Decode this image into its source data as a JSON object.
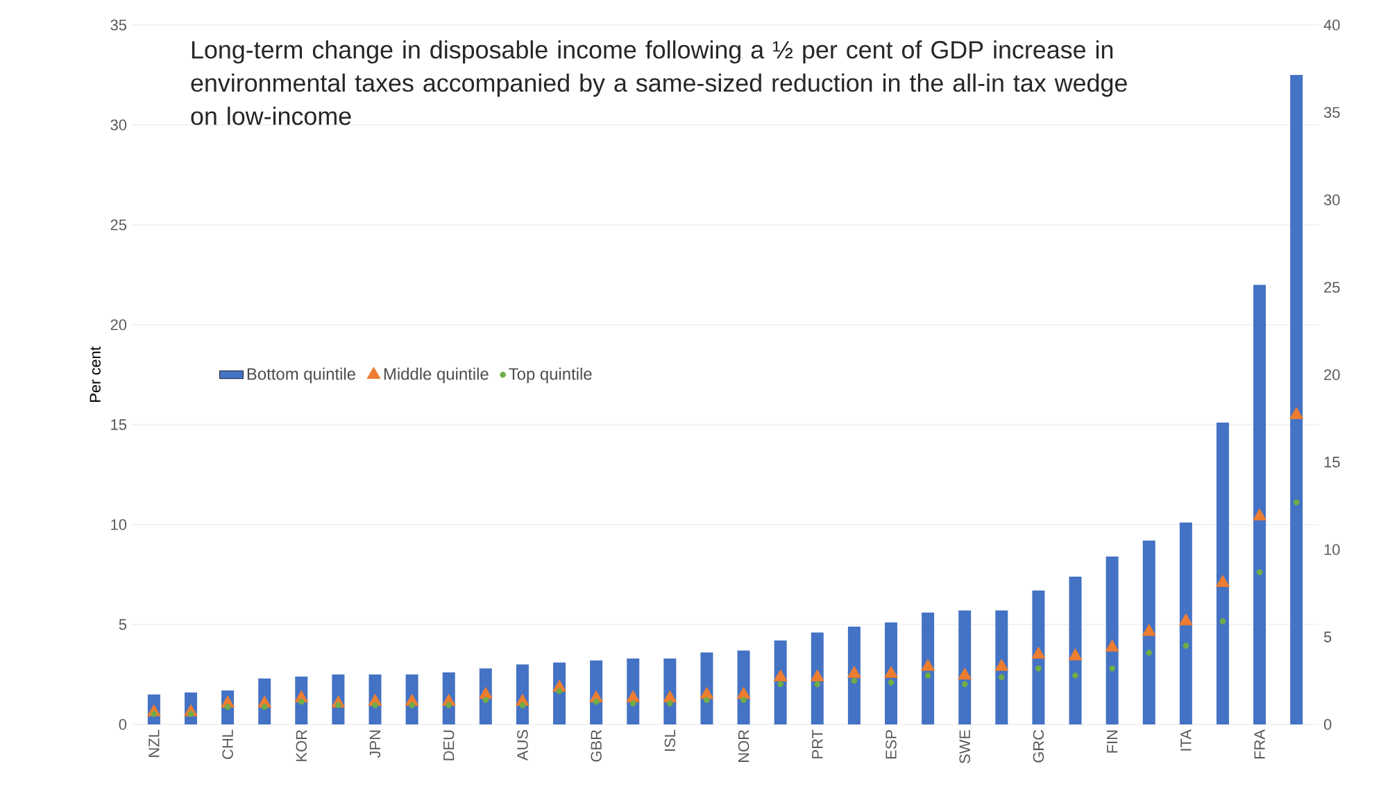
{
  "chart_data": {
    "type": "bar",
    "title": "Long-term change in disposable income following a ½ per cent of GDP increase in environmental taxes accompanied by a same-sized reduction in the all-in tax wedge on low-income",
    "ylabel": "Per cent",
    "categories": [
      "NZL",
      null,
      "CHL",
      null,
      "KOR",
      null,
      "JPN",
      null,
      "DEU",
      null,
      "AUS",
      null,
      "GBR",
      null,
      "ISL",
      null,
      "NOR",
      null,
      "PRT",
      null,
      "ESP",
      null,
      "SWE",
      null,
      "GRC",
      null,
      "FIN",
      null,
      "ITA",
      null,
      "FRA",
      null
    ],
    "series": [
      {
        "name": "Bottom quintile",
        "type": "bar",
        "color": "#4472c4",
        "values": [
          1.5,
          1.6,
          1.7,
          2.3,
          2.4,
          2.5,
          2.5,
          2.5,
          2.6,
          2.8,
          3.0,
          3.1,
          3.2,
          3.3,
          3.3,
          3.6,
          3.7,
          4.2,
          4.6,
          4.9,
          5.1,
          5.6,
          5.7,
          5.7,
          6.7,
          7.4,
          8.4,
          9.2,
          10.1,
          15.1,
          22.0,
          32.5
        ]
      },
      {
        "name": "Middle quintile",
        "type": "scatter",
        "axis": "y2",
        "marker": "triangle",
        "color": "#ed7d31",
        "values": [
          0.7,
          0.7,
          1.2,
          1.2,
          1.5,
          1.2,
          1.3,
          1.3,
          1.3,
          1.7,
          1.3,
          2.1,
          1.5,
          1.5,
          1.5,
          1.7,
          1.7,
          2.7,
          2.7,
          2.9,
          2.9,
          3.3,
          2.8,
          3.3,
          4.0,
          3.9,
          4.4,
          5.3,
          5.9,
          8.1,
          11.9,
          17.7
        ]
      },
      {
        "name": "Top quintile",
        "type": "scatter",
        "axis": "y2",
        "marker": "circle",
        "color": "#70ad47",
        "values": [
          0.6,
          0.6,
          1.0,
          1.0,
          1.3,
          1.1,
          1.1,
          1.1,
          1.1,
          1.4,
          1.1,
          1.9,
          1.3,
          1.2,
          1.2,
          1.4,
          1.4,
          2.3,
          2.3,
          2.5,
          2.4,
          2.8,
          2.3,
          2.7,
          3.2,
          2.8,
          3.2,
          4.1,
          4.5,
          5.9,
          8.7,
          12.7
        ]
      }
    ],
    "ylim": [
      0,
      35
    ],
    "yticks": [
      0,
      5,
      10,
      15,
      20,
      25,
      30,
      35
    ],
    "y2lim": [
      0,
      40
    ],
    "y2ticks": [
      0,
      5,
      10,
      15,
      20,
      25,
      30,
      35,
      40
    ],
    "grid": "y",
    "legend": "left"
  }
}
